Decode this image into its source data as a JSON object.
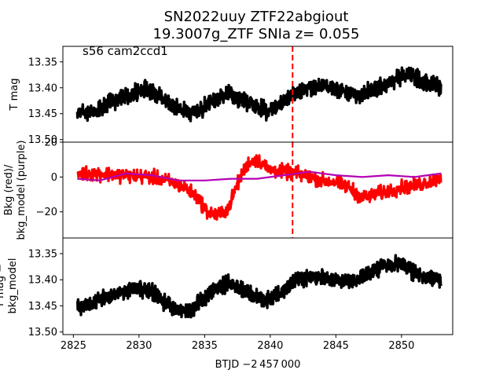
{
  "figure": {
    "title_line1": "SN2022uuy  ZTF22abgiout",
    "title_line2": "19.3007g_ZTF SNIa z= 0.055",
    "xlabel": "BTJD −2 457 000"
  },
  "chart_data": [
    {
      "type": "scatter",
      "panel": "top",
      "ylabel": "T mag",
      "annotation": "s56 cam2ccd1",
      "y_inverted": true,
      "xlim": [
        2824.2,
        2853.9
      ],
      "ylim": [
        13.505,
        13.32
      ],
      "y_ticks": [
        13.35,
        13.4,
        13.45,
        13.5
      ],
      "y_tick_labels": [
        "13.35",
        "13.40",
        "13.45",
        "13.50"
      ],
      "reference_line_x": 2841.7,
      "reference_line_color": "#ff0000",
      "series": [
        {
          "color": "#000000",
          "x": [
            2825.3,
            2826.5,
            2828.0,
            2829.5,
            2830.8,
            2831.8,
            2832.8,
            2833.8,
            2834.8,
            2835.8,
            2836.8,
            2837.8,
            2838.8,
            2839.8,
            2840.8,
            2841.7,
            2842.7,
            2843.7,
            2844.7,
            2845.7,
            2846.7,
            2847.7,
            2848.7,
            2849.7,
            2850.7,
            2851.7,
            2852.7,
            2853.0
          ],
          "y": [
            13.445,
            13.448,
            13.425,
            13.41,
            13.405,
            13.42,
            13.44,
            13.448,
            13.44,
            13.425,
            13.41,
            13.425,
            13.435,
            13.445,
            13.43,
            13.41,
            13.4,
            13.395,
            13.4,
            13.41,
            13.415,
            13.405,
            13.395,
            13.38,
            13.375,
            13.39,
            13.395,
            13.398
          ],
          "spread": 0.022
        }
      ]
    },
    {
      "type": "scatter",
      "panel": "middle",
      "ylabel_line1": "Bkg (red)/",
      "ylabel_line2": "bkg_model (purple)",
      "xlim": [
        2824.2,
        2853.9
      ],
      "ylim": [
        -35,
        20
      ],
      "y_ticks": [
        -20,
        0,
        20
      ],
      "y_tick_labels": [
        "−20",
        "0",
        "20"
      ],
      "reference_line_x": 2841.7,
      "reference_line_color": "#ff0000",
      "series": [
        {
          "name": "Bkg",
          "color": "#ff0000",
          "x": [
            2825.3,
            2827.0,
            2829.0,
            2831.0,
            2832.5,
            2833.5,
            2834.5,
            2835.2,
            2836.0,
            2836.8,
            2837.5,
            2838.3,
            2839.0,
            2840.0,
            2841.0,
            2842.0,
            2843.0,
            2844.0,
            2845.0,
            2846.0,
            2847.0,
            2848.0,
            2849.0,
            2850.0,
            2851.0,
            2852.0,
            2853.0
          ],
          "y": [
            2,
            2,
            1,
            0,
            -3,
            -6,
            -12,
            -20,
            -22,
            -18,
            -4,
            8,
            10,
            4,
            3,
            2,
            0,
            -2,
            -3,
            -6,
            -12,
            -10,
            -8,
            -6,
            -5,
            -3,
            0
          ],
          "spread": 6
        },
        {
          "name": "bkg_model",
          "color": "#b400b4",
          "x": [
            2825.3,
            2827.0,
            2829.0,
            2831.0,
            2833.0,
            2835.0,
            2837.0,
            2839.0,
            2841.0,
            2843.0,
            2845.0,
            2847.0,
            2849.0,
            2851.0,
            2853.0
          ],
          "y": [
            -1,
            -2,
            2,
            1,
            -2,
            -2,
            -1,
            -1,
            1,
            3,
            1,
            0,
            1,
            0,
            2
          ]
        }
      ]
    },
    {
      "type": "scatter",
      "panel": "bottom",
      "ylabel_line1": "T mag −",
      "ylabel_line2": "bkg_model",
      "y_inverted": true,
      "xlim": [
        2824.2,
        2853.9
      ],
      "ylim": [
        13.505,
        13.32
      ],
      "y_ticks": [
        13.35,
        13.4,
        13.45,
        13.5
      ],
      "y_tick_labels": [
        "13.35",
        "13.40",
        "13.45",
        "13.50"
      ],
      "x_ticks": [
        2825,
        2830,
        2835,
        2840,
        2845,
        2850
      ],
      "x_tick_labels": [
        "2825",
        "2830",
        "2835",
        "2840",
        "2845",
        "2850"
      ],
      "series": [
        {
          "color": "#000000",
          "x": [
            2825.3,
            2826.5,
            2828.0,
            2829.5,
            2830.8,
            2831.8,
            2832.8,
            2833.8,
            2834.8,
            2835.8,
            2836.8,
            2837.8,
            2838.8,
            2839.8,
            2840.8,
            2841.7,
            2842.7,
            2843.7,
            2844.7,
            2845.7,
            2846.7,
            2847.7,
            2848.7,
            2849.7,
            2850.7,
            2851.7,
            2852.7,
            2853.0
          ],
          "y": [
            13.45,
            13.445,
            13.43,
            13.415,
            13.418,
            13.44,
            13.455,
            13.46,
            13.44,
            13.42,
            13.405,
            13.42,
            13.43,
            13.44,
            13.425,
            13.405,
            13.395,
            13.395,
            13.4,
            13.405,
            13.4,
            13.385,
            13.37,
            13.37,
            13.38,
            13.395,
            13.398,
            13.4
          ],
          "spread": 0.022
        }
      ]
    }
  ]
}
